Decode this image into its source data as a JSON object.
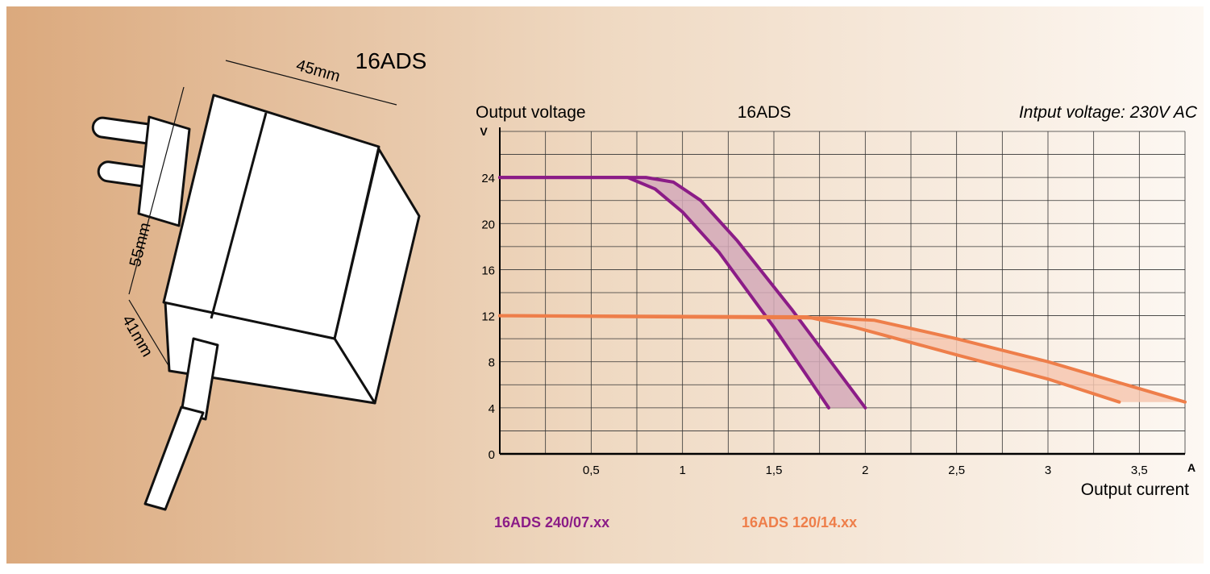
{
  "drawing": {
    "title": "16ADS",
    "dimensions": [
      "45mm",
      "55mm",
      "41mm"
    ]
  },
  "chart_data": {
    "type": "line",
    "title": "16ADS",
    "y_label": "Output voltage",
    "y_unit": "V",
    "x_label": "Output current",
    "x_unit": "A",
    "annotation": "Intput voltage: 230V AC",
    "xlim": [
      0,
      3.75
    ],
    "ylim": [
      0,
      28
    ],
    "xticks": [
      {
        "value": 0.5,
        "label": "0,5"
      },
      1,
      {
        "value": 1.5,
        "label": "1,5"
      },
      2,
      {
        "value": 2.5,
        "label": "2,5"
      },
      3,
      {
        "value": 3.5,
        "label": "3,5"
      }
    ],
    "yticks": [
      0,
      4,
      8,
      12,
      16,
      20,
      24
    ],
    "x_minor_grid": [
      0.25,
      0.75,
      1.25,
      1.75,
      2.25,
      2.75,
      3.25,
      3.75
    ],
    "y_minor_grid": [
      2,
      6,
      10,
      14,
      18,
      22,
      26,
      28
    ],
    "grid": true,
    "series": [
      {
        "name": "16ADS 240/07.xx",
        "color": "#8b1c87",
        "fill": "#d4a9b8",
        "bounds": [
          {
            "x": [
              0,
              0.8,
              0.95,
              1.1,
              1.3,
              1.6,
              2.0
            ],
            "values": [
              24,
              24,
              23.6,
              22,
              18.5,
              12.5,
              4
            ]
          },
          {
            "x": [
              0,
              0.7,
              0.85,
              1.0,
              1.2,
              1.5,
              1.8
            ],
            "values": [
              24,
              24,
              23,
              21,
              17.5,
              11,
              4
            ]
          }
        ]
      },
      {
        "name": "16ADS 120/14.xx",
        "color": "#ee7e4a",
        "fill": "#f6c7b0",
        "bounds": [
          {
            "x": [
              0,
              1.8,
              2.05,
              2.5,
              3.0,
              3.75
            ],
            "values": [
              12,
              11.8,
              11.6,
              10,
              8,
              4.5
            ]
          },
          {
            "x": [
              0,
              1.68,
              1.94,
              2.5,
              3.0,
              3.39
            ],
            "values": [
              12,
              11.9,
              11,
              8.6,
              6.5,
              4.5
            ]
          }
        ]
      }
    ]
  }
}
